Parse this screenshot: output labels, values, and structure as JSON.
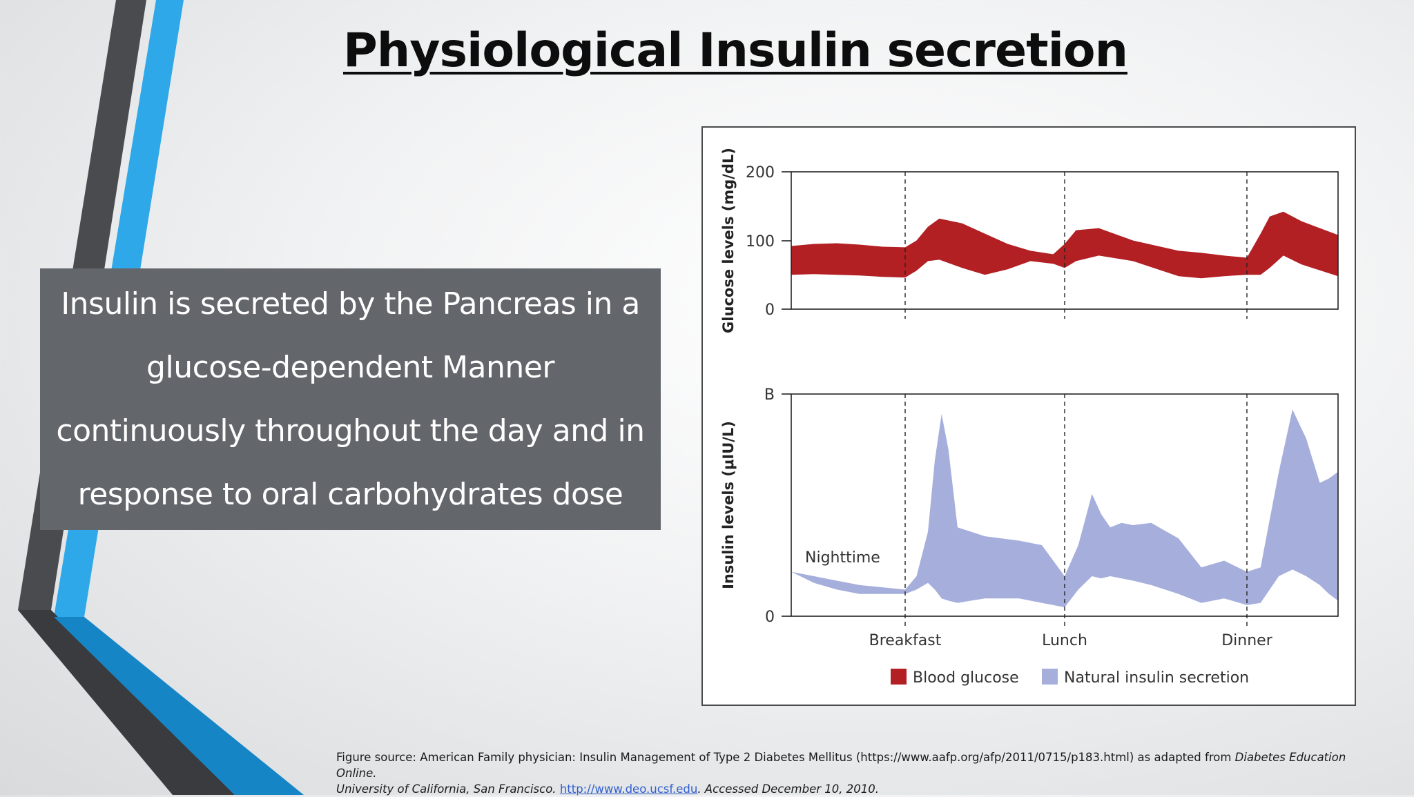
{
  "slide": {
    "title": "Physiological Insulin secretion",
    "body_text": "Insulin is secreted by the Pancreas in a glucose-dependent Manner continuously throughout the day and in response to oral carbohydrates dose"
  },
  "caption": {
    "prefix": "Figure source: American Family physician: Insulin Management of Type 2 Diabetes Mellitus (https://www.aafp.org/afp/2011/0715/p183.html) as adapted from ",
    "source_title": "Diabetes Education Online.",
    "institution": "University of California, San Francisco.",
    "link": "http://www.deo.ucsf.edu",
    "accessed": ". Accessed December 10, 2010."
  },
  "colors": {
    "blood_glucose": "#b22024",
    "insulin": "#a6afdc",
    "deco_blue": "#2ea8e8",
    "deco_gray": "#4a4b4e"
  },
  "chart_data": [
    {
      "type": "area",
      "ylabel": "Glucose levels (mg/dL)",
      "ylim": [
        0,
        200
      ],
      "yticks": [
        "0",
        "100",
        "200"
      ],
      "xlim": [
        0,
        24
      ],
      "meal_markers": [
        {
          "label": "Breakfast",
          "x": 5
        },
        {
          "label": "Lunch",
          "x": 12
        },
        {
          "label": "Dinner",
          "x": 20
        }
      ],
      "series": [
        {
          "name": "Blood glucose",
          "x": [
            0,
            1,
            2,
            3,
            4,
            5,
            5.5,
            6,
            6.5,
            7.5,
            8.5,
            9.5,
            10.5,
            11.5,
            12,
            12.5,
            13.5,
            15,
            17,
            18,
            19,
            20,
            20.6,
            21,
            21.6,
            22.4,
            24
          ],
          "upper": [
            92,
            95,
            96,
            94,
            91,
            90,
            100,
            120,
            132,
            125,
            110,
            95,
            85,
            80,
            95,
            115,
            118,
            100,
            85,
            82,
            78,
            75,
            110,
            135,
            142,
            128,
            108
          ],
          "lower": [
            50,
            51,
            50,
            49,
            47,
            46,
            56,
            70,
            72,
            60,
            50,
            58,
            70,
            66,
            60,
            70,
            78,
            70,
            48,
            45,
            48,
            50,
            50,
            60,
            78,
            65,
            48
          ]
        }
      ]
    },
    {
      "type": "area",
      "ylabel": "Insulin levels (μIU/L)",
      "ylim": [
        0,
        100
      ],
      "yticks": [
        "0",
        "B"
      ],
      "xlim": [
        0,
        24
      ],
      "annotation": "Nighttime",
      "meal_markers": [
        {
          "label": "Breakfast",
          "x": 5
        },
        {
          "label": "Lunch",
          "x": 12
        },
        {
          "label": "Dinner",
          "x": 20
        }
      ],
      "series": [
        {
          "name": "Natural insulin secretion",
          "x": [
            0,
            1,
            2,
            3,
            4,
            5,
            5.5,
            6,
            6.3,
            6.6,
            6.9,
            7.3,
            8.5,
            10,
            11,
            12,
            12.6,
            13.2,
            13.6,
            14,
            14.5,
            15,
            15.8,
            17,
            18,
            19,
            20,
            20.6,
            21.4,
            22,
            22.6,
            23.2,
            23.6,
            24
          ],
          "upper": [
            20,
            18,
            16,
            14,
            13,
            12,
            18,
            38,
            70,
            91,
            75,
            40,
            36,
            34,
            32,
            18,
            32,
            55,
            46,
            40,
            42,
            41,
            42,
            35,
            22,
            25,
            20,
            22,
            65,
            93,
            80,
            60,
            62,
            65
          ],
          "lower": [
            20,
            15,
            12,
            10,
            10,
            10,
            12,
            15,
            12,
            8,
            7,
            6,
            8,
            8,
            6,
            4,
            12,
            18,
            17,
            18,
            17,
            16,
            14,
            10,
            6,
            8,
            5,
            6,
            18,
            21,
            18,
            14,
            10,
            7
          ]
        }
      ]
    }
  ]
}
